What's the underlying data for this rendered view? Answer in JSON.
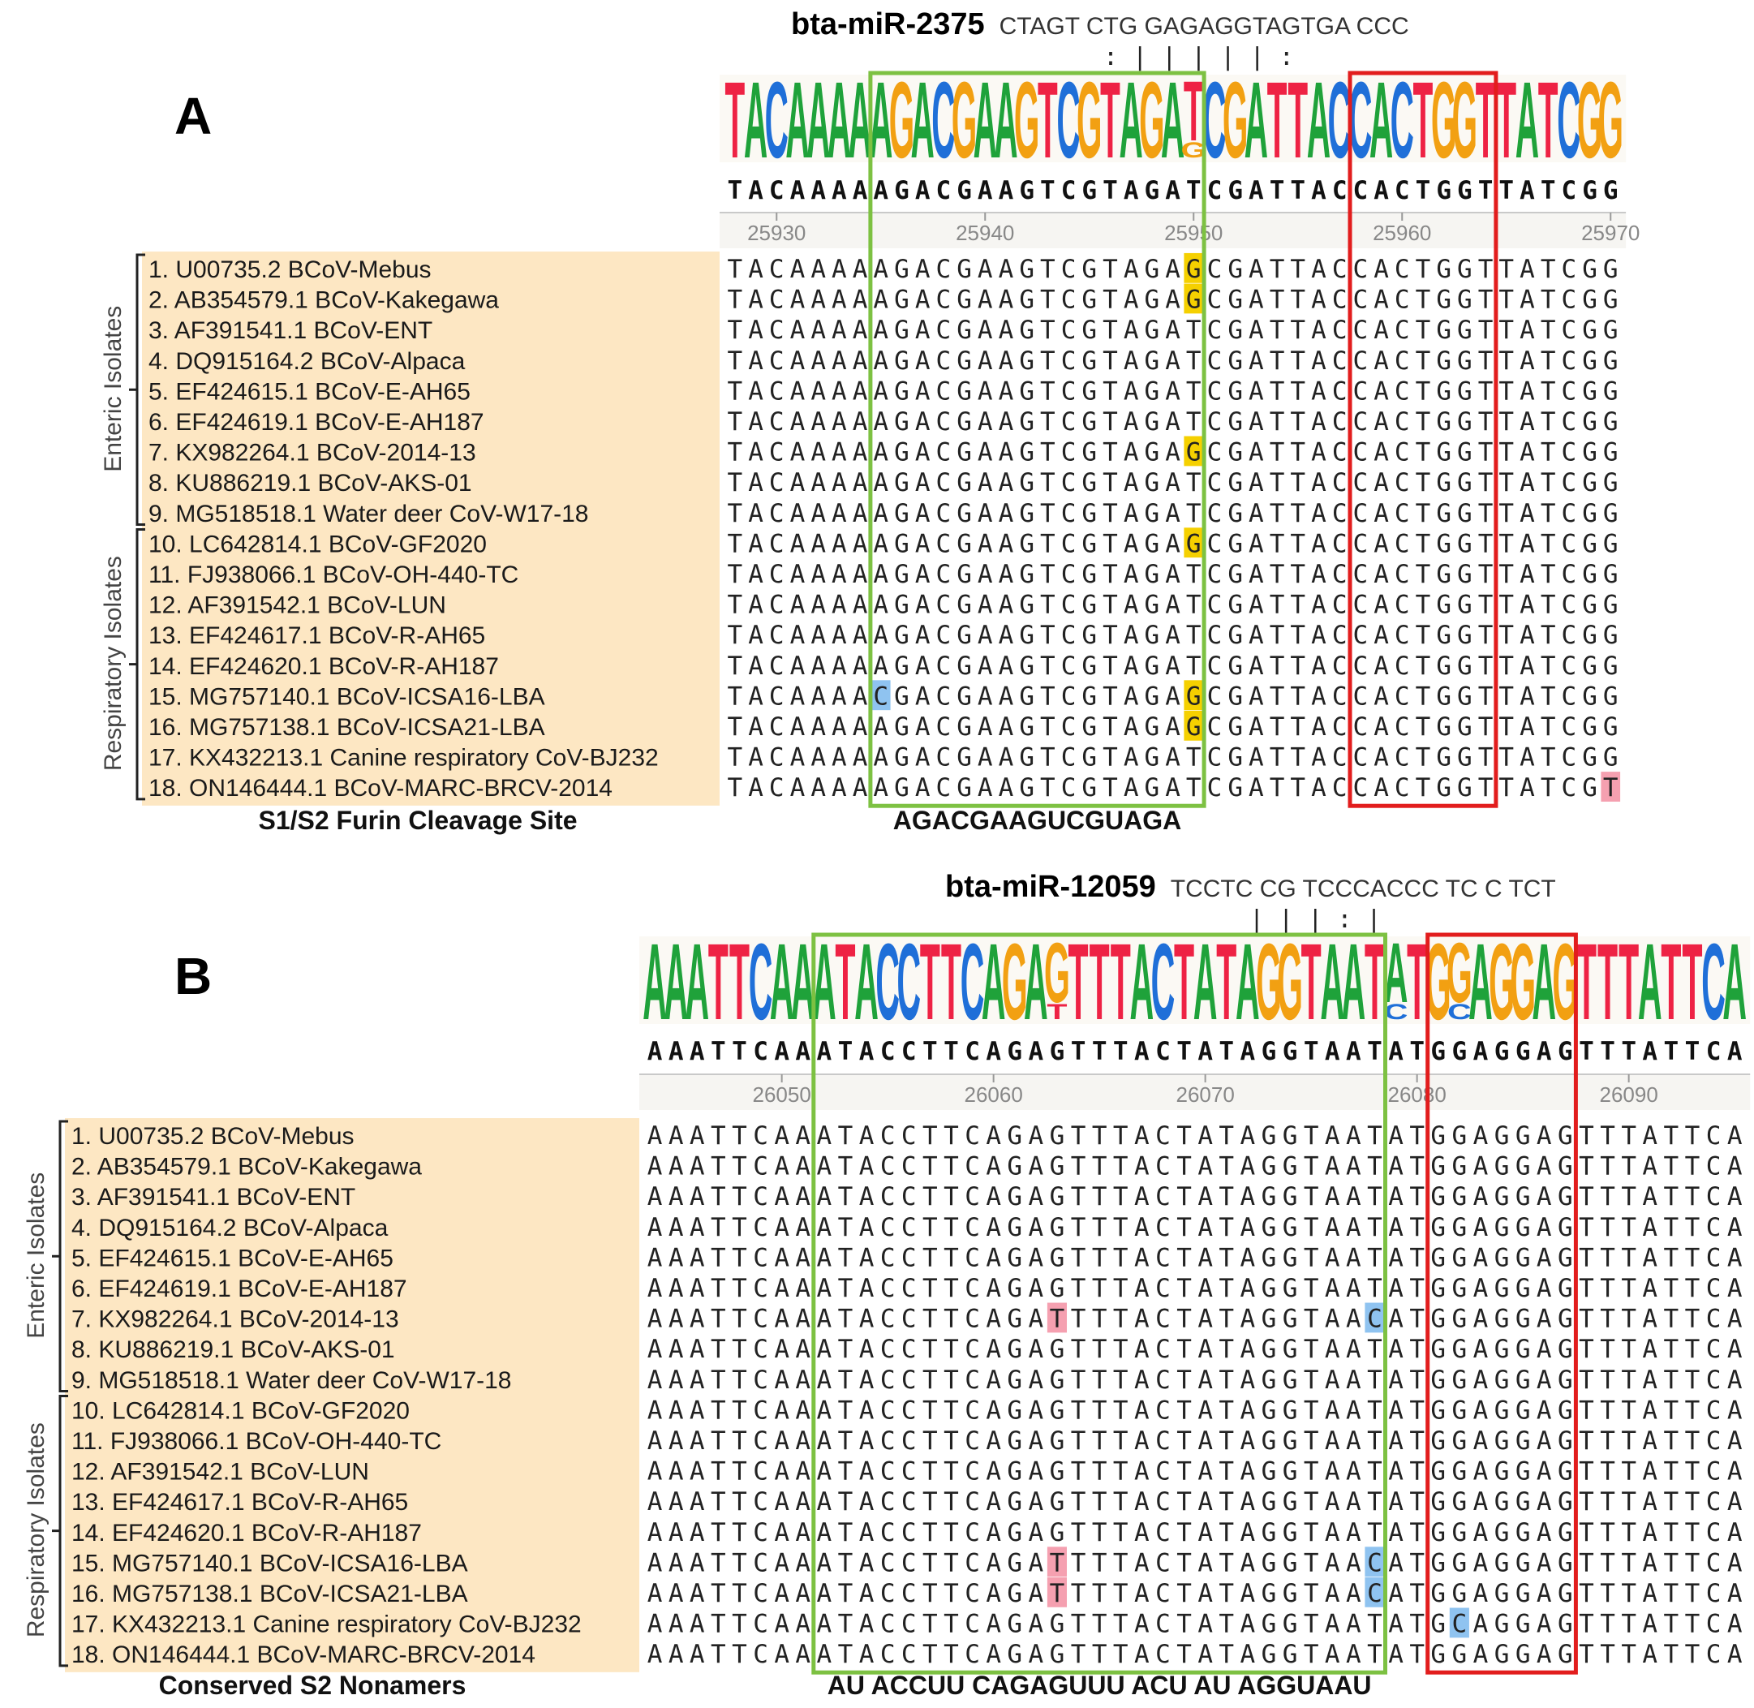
{
  "colors": {
    "A": "#1fa23a",
    "C": "#1f6fd8",
    "G": "#f2a012",
    "T": "#ee2244",
    "label_bg": "#fde7c3",
    "green_box": "#7dc142",
    "red_box": "#e21d1d",
    "hl_yellow": "#f5d000",
    "hl_pink": "#f5a0b0",
    "hl_blue": "#8fc3f0"
  },
  "panelA": {
    "letter": "A",
    "mirna_name": "bta-miR-2375",
    "mirna_seq": "CTAGT CTG GAGAGGTAGTGA CCC",
    "pairing": ": | | |    |    | :",
    "consensus": "TACAAAAAGACGAAGTCGTAGATCGATTACCACTGGTTATCGG",
    "logo_minor": [
      {
        "pos": 22,
        "base": "G"
      }
    ],
    "ticks": [
      "25930",
      "25940",
      "25950",
      "25960",
      "25970"
    ],
    "group_enteric": "Enteric Isolates",
    "group_respiratory": "Respiratory Isolates",
    "isolates": [
      "1. U00735.2 BCoV-Mebus",
      "2. AB354579.1 BCoV-Kakegawa",
      "3. AF391541.1 BCoV-ENT",
      "4. DQ915164.2 BCoV-Alpaca",
      "5. EF424615.1 BCoV-E-AH65",
      "6. EF424619.1 BCoV-E-AH187",
      "7. KX982264.1 BCoV-2014-13",
      "8. KU886219.1 BCoV-AKS-01",
      "9. MG518518.1 Water deer CoV-W17-18",
      "10. LC642814.1 BCoV-GF2020",
      "11. FJ938066.1 BCoV-OH-440-TC",
      "12. AF391542.1 BCoV-LUN",
      "13. EF424617.1 BCoV-R-AH65",
      "14. EF424620.1 BCoV-R-AH187",
      "15. MG757140.1 BCoV-ICSA16-LBA",
      "16. MG757138.1 BCoV-ICSA21-LBA",
      "17. KX432213.1 Canine respiratory CoV-BJ232",
      "18. ON146444.1 BCoV-MARC-BRCV-2014"
    ],
    "sequences": [
      "TACAAAAAGACGAAGTCGTAGAGCGATTACCACTGGTTATCGG",
      "TACAAAAAGACGAAGTCGTAGAGCGATTACCACTGGTTATCGG",
      "TACAAAAAGACGAAGTCGTAGATCGATTACCACTGGTTATCGG",
      "TACAAAAAGACGAAGTCGTAGATCGATTACCACTGGTTATCGG",
      "TACAAAAAGACGAAGTCGTAGATCGATTACCACTGGTTATCGG",
      "TACAAAAAGACGAAGTCGTAGATCGATTACCACTGGTTATCGG",
      "TACAAAAAGACGAAGTCGTAGAGCGATTACCACTGGTTATCGG",
      "TACAAAAAGACGAAGTCGTAGATCGATTACCACTGGTTATCGG",
      "TACAAAAAGACGAAGTCGTAGATCGATTACCACTGGTTATCGG",
      "TACAAAAAGACGAAGTCGTAGAGCGATTACCACTGGTTATCGG",
      "TACAAAAAGACGAAGTCGTAGATCGATTACCACTGGTTATCGG",
      "TACAAAAAGACGAAGTCGTAGATCGATTACCACTGGTTATCGG",
      "TACAAAAAGACGAAGTCGTAGATCGATTACCACTGGTTATCGG",
      "TACAAAAAGACGAAGTCGTAGATCGATTACCACTGGTTATCGG",
      "TACAAAACGACGAAGTCGTAGAGCGATTACCACTGGTTATCGG",
      "TACAAAAAGACGAAGTCGTAGAGCGATTACCACTGGTTATCGG",
      "TACAAAAAGACGAAGTCGTAGATCGATTACCACTGGTTATCGG",
      "TACAAAAAGACGAAGTCGTAGATCGATTACCACTGGTTATCGT"
    ],
    "highlights": [
      {
        "row": 0,
        "pos": 22,
        "color": "yellow"
      },
      {
        "row": 1,
        "pos": 22,
        "color": "yellow"
      },
      {
        "row": 6,
        "pos": 22,
        "color": "yellow"
      },
      {
        "row": 9,
        "pos": 22,
        "color": "yellow"
      },
      {
        "row": 14,
        "pos": 7,
        "color": "blue"
      },
      {
        "row": 14,
        "pos": 22,
        "color": "yellow"
      },
      {
        "row": 15,
        "pos": 22,
        "color": "yellow"
      },
      {
        "row": 17,
        "pos": 42,
        "color": "pink"
      }
    ],
    "green_box_cols": [
      7,
      22
    ],
    "red_box_cols": [
      30,
      36
    ],
    "left_caption": "S1/S2 Furin Cleavage Site",
    "bottom_seq": "AGACGAAGUCGUAGA"
  },
  "panelB": {
    "letter": "B",
    "mirna_name": "bta-miR-12059",
    "mirna_seq": "TCCTC CG TCCCACCC TC C TCT",
    "pairing": "| | | : |",
    "consensus": "AAATTCAAATACCTTCAGAGTTTACTATAGGTAATATGGAGGAGTTTATTCA",
    "logo_minor": [
      {
        "pos": 19,
        "base": "T"
      },
      {
        "pos": 35,
        "base": "C"
      },
      {
        "pos": 38,
        "base": "C"
      }
    ],
    "ticks": [
      "26050",
      "26060",
      "26070",
      "26080",
      "26090"
    ],
    "group_enteric": "Enteric Isolates",
    "group_respiratory": "Respiratory Isolates",
    "isolates": [
      "1. U00735.2 BCoV-Mebus",
      "2. AB354579.1 BCoV-Kakegawa",
      "3. AF391541.1 BCoV-ENT",
      "4. DQ915164.2 BCoV-Alpaca",
      "5. EF424615.1 BCoV-E-AH65",
      "6. EF424619.1 BCoV-E-AH187",
      "7. KX982264.1 BCoV-2014-13",
      "8. KU886219.1 BCoV-AKS-01",
      "9. MG518518.1 Water deer CoV-W17-18",
      "10. LC642814.1 BCoV-GF2020",
      "11. FJ938066.1 BCoV-OH-440-TC",
      "12. AF391542.1 BCoV-LUN",
      "13. EF424617.1 BCoV-R-AH65",
      "14. EF424620.1 BCoV-R-AH187",
      "15. MG757140.1 BCoV-ICSA16-LBA",
      "16. MG757138.1 BCoV-ICSA21-LBA",
      "17. KX432213.1 Canine respiratory CoV-BJ232",
      "18. ON146444.1 BCoV-MARC-BRCV-2014"
    ],
    "sequences": [
      "AAATTCAAATACCTTCAGAGTTTACTATAGGTAATATGGAGGAGTTTATTCA",
      "AAATTCAAATACCTTCAGAGTTTACTATAGGTAATATGGAGGAGTTTATTCA",
      "AAATTCAAATACCTTCAGAGTTTACTATAGGTAATATGGAGGAGTTTATTCA",
      "AAATTCAAATACCTTCAGAGTTTACTATAGGTAATATGGAGGAGTTTATTCA",
      "AAATTCAAATACCTTCAGAGTTTACTATAGGTAATATGGAGGAGTTTATTCA",
      "AAATTCAAATACCTTCAGAGTTTACTATAGGTAATATGGAGGAGTTTATTCA",
      "AAATTCAAATACCTTCAGATTTTACTATAGGTAACATGGAGGAGTTTATTCA",
      "AAATTCAAATACCTTCAGAGTTTACTATAGGTAATATGGAGGAGTTTATTCA",
      "AAATTCAAATACCTTCAGAGTTTACTATAGGTAATATGGAGGAGTTTATTCA",
      "AAATTCAAATACCTTCAGAGTTTACTATAGGTAATATGGAGGAGTTTATTCA",
      "AAATTCAAATACCTTCAGAGTTTACTATAGGTAATATGGAGGAGTTTATTCA",
      "AAATTCAAATACCTTCAGAGTTTACTATAGGTAATATGGAGGAGTTTATTCA",
      "AAATTCAAATACCTTCAGAGTTTACTATAGGTAATATGGAGGAGTTTATTCA",
      "AAATTCAAATACCTTCAGAGTTTACTATAGGTAATATGGAGGAGTTTATTCA",
      "AAATTCAAATACCTTCAGATTTTACTATAGGTAACATGGAGGAGTTTATTCA",
      "AAATTCAAATACCTTCAGATTTTACTATAGGTAACATGGAGGAGTTTATTCA",
      "AAATTCAAATACCTTCAGAGTTTACTATAGGTAATATGCAGGAGTTTATTCA",
      "AAATTCAAATACCTTCAGAGTTTACTATAGGTAATATGGAGGAGTTTATTCA"
    ],
    "highlights": [
      {
        "row": 6,
        "pos": 19,
        "color": "pink"
      },
      {
        "row": 6,
        "pos": 34,
        "color": "blue"
      },
      {
        "row": 14,
        "pos": 19,
        "color": "pink"
      },
      {
        "row": 14,
        "pos": 34,
        "color": "blue"
      },
      {
        "row": 15,
        "pos": 19,
        "color": "pink"
      },
      {
        "row": 15,
        "pos": 34,
        "color": "blue"
      },
      {
        "row": 16,
        "pos": 38,
        "color": "blue"
      }
    ],
    "green_box_cols": [
      8,
      34
    ],
    "red_box_cols": [
      37,
      43
    ],
    "left_caption": "Conserved S2 Nonamers",
    "bottom_seq": "AU ACCUU CAGAGUUU ACU AU AGGUAAU"
  }
}
